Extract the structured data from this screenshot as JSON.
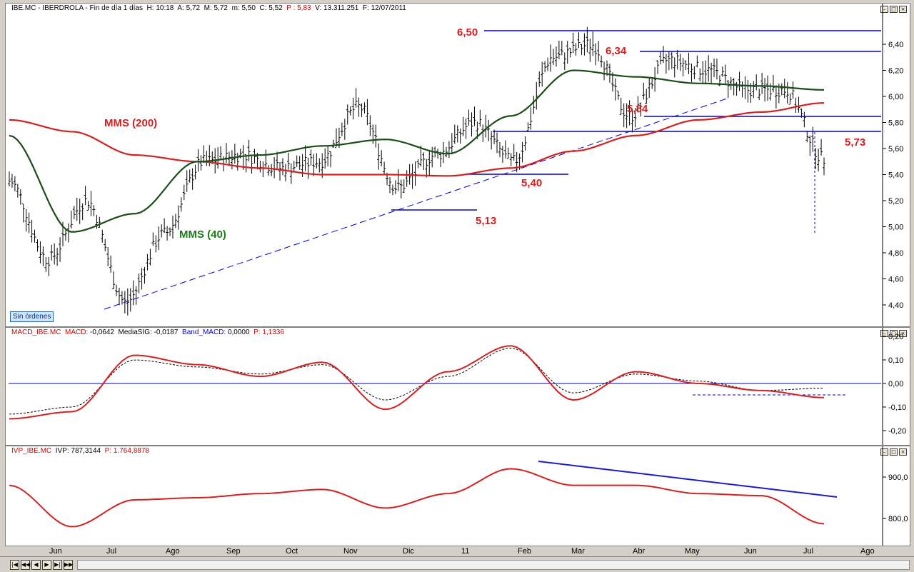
{
  "price_panel": {
    "header": {
      "ticker": "IBE.MC",
      "name": "IBERDROLA",
      "period": "Fin de día 1 días",
      "h_label": "H:",
      "h_value": "10:18",
      "a_label": "A:",
      "a_value": "5,72",
      "m_label": "M:",
      "m_value": "5,72",
      "mn_label": "m:",
      "mn_value": "5,50",
      "c_label": "C:",
      "c_value": "5,52",
      "p_label": "P :",
      "p_value": "5,83",
      "v_label": "V:",
      "v_value": "13.311.251",
      "f_label": "F:",
      "f_value": "12/07/2011"
    },
    "badge": "Sin órdenes",
    "y_ticks": [
      "6,40",
      "6,20",
      "6,00",
      "5,80",
      "5,60",
      "5,40",
      "5,20",
      "5,00",
      "4,80",
      "4,60",
      "4,40"
    ],
    "annotations": {
      "r650": "6,50",
      "r634": "6,34",
      "r584": "5,84",
      "r573": "5,73",
      "r540": "5,40",
      "r513": "5,13",
      "mms200": "MMS (200)",
      "mms40": "MMS (40)"
    }
  },
  "macd_panel": {
    "header": {
      "name": "MACD_IBE.MC",
      "macd_label": "MACD:",
      "macd_value": "-0,0642",
      "sig_label": "MediaSIG:",
      "sig_value": "-0,0187",
      "band_label": "Band_MACD:",
      "band_value": "0,0000",
      "p_label": "P:",
      "p_value": "1,1336"
    },
    "y_ticks": [
      "0,20",
      "0,10",
      "0,00",
      "-0,10",
      "-0,20"
    ]
  },
  "ivp_panel": {
    "header": {
      "name": "IVP_IBE.MC",
      "ivp_label": "IVP:",
      "ivp_value": "787,3144",
      "p_label": "P:",
      "p_value": "1.764,8878"
    },
    "y_ticks": [
      "900,0",
      "800,0"
    ]
  },
  "x_axis": {
    "months": [
      "Jun",
      "Jul",
      "Ago",
      "Sep",
      "Oct",
      "Nov",
      "Dic",
      "11",
      "Feb",
      "Mar",
      "Abr",
      "May",
      "Jun",
      "Jul",
      "Ago"
    ]
  },
  "colors": {
    "price_bars": "#000000",
    "mms200": "#d42020",
    "mms40": "#1a4d1a",
    "support_lines": "#0000c8",
    "macd_line": "#d42020",
    "signal_line": "#000000",
    "ivp_line": "#d42020",
    "ivp_trendline": "#1a1ad0"
  },
  "chart_data": [
    {
      "type": "line",
      "title": "IBE.MC - IBERDROLA",
      "period": "Fin de día 1 días",
      "x": [
        "Jun",
        "Jul",
        "Ago",
        "Sep",
        "Oct",
        "Nov",
        "Dic",
        "11",
        "Feb",
        "Mar",
        "Abr",
        "May",
        "Jun",
        "Jul"
      ],
      "ylim": [
        4.35,
        6.55
      ],
      "y_ticks": [
        6.4,
        6.2,
        6.0,
        5.8,
        5.6,
        5.4,
        5.2,
        5.0,
        4.8,
        4.6,
        4.4
      ],
      "series": [
        {
          "name": "MMS (200)",
          "values": [
            5.82,
            5.73,
            5.55,
            5.5,
            5.45,
            5.4,
            5.4,
            5.39,
            5.45,
            5.58,
            5.7,
            5.82,
            5.88,
            5.95
          ]
        },
        {
          "name": "MMS (40)",
          "values": [
            5.7,
            4.96,
            5.1,
            5.5,
            5.55,
            5.62,
            5.67,
            5.56,
            5.85,
            6.2,
            6.15,
            6.1,
            6.08,
            6.05
          ]
        }
      ],
      "levels": [
        6.5,
        6.34,
        5.84,
        5.73,
        5.4,
        5.13
      ],
      "grid": false
    },
    {
      "type": "line",
      "title": "MACD_IBE.MC",
      "x": [
        "Jun",
        "Jul",
        "Ago",
        "Sep",
        "Oct",
        "Nov",
        "Dic",
        "11",
        "Feb",
        "Mar",
        "Abr",
        "May",
        "Jun",
        "Jul"
      ],
      "ylim": [
        -0.22,
        0.2
      ],
      "y_ticks": [
        0.2,
        0.1,
        0.0,
        -0.1,
        -0.2
      ],
      "series": [
        {
          "name": "MACD",
          "values": [
            -0.15,
            -0.12,
            0.12,
            0.08,
            0.03,
            0.09,
            -0.11,
            0.05,
            0.16,
            -0.07,
            0.05,
            0.0,
            -0.03,
            -0.06
          ]
        },
        {
          "name": "MediaSIG",
          "values": [
            -0.13,
            -0.1,
            0.1,
            0.07,
            0.04,
            0.08,
            -0.07,
            0.03,
            0.15,
            -0.04,
            0.04,
            0.01,
            -0.03,
            -0.02
          ]
        }
      ]
    },
    {
      "type": "line",
      "title": "IVP_IBE.MC",
      "x": [
        "Jun",
        "Jul",
        "Ago",
        "Sep",
        "Oct",
        "Nov",
        "Dic",
        "11",
        "Feb",
        "Mar",
        "Abr",
        "May",
        "Jun",
        "Jul"
      ],
      "ylim": [
        765,
        945
      ],
      "y_ticks": [
        900.0,
        800.0
      ],
      "series": [
        {
          "name": "IVP",
          "values": [
            880,
            780,
            845,
            850,
            860,
            870,
            825,
            860,
            920,
            880,
            880,
            860,
            855,
            787
          ]
        }
      ]
    }
  ]
}
